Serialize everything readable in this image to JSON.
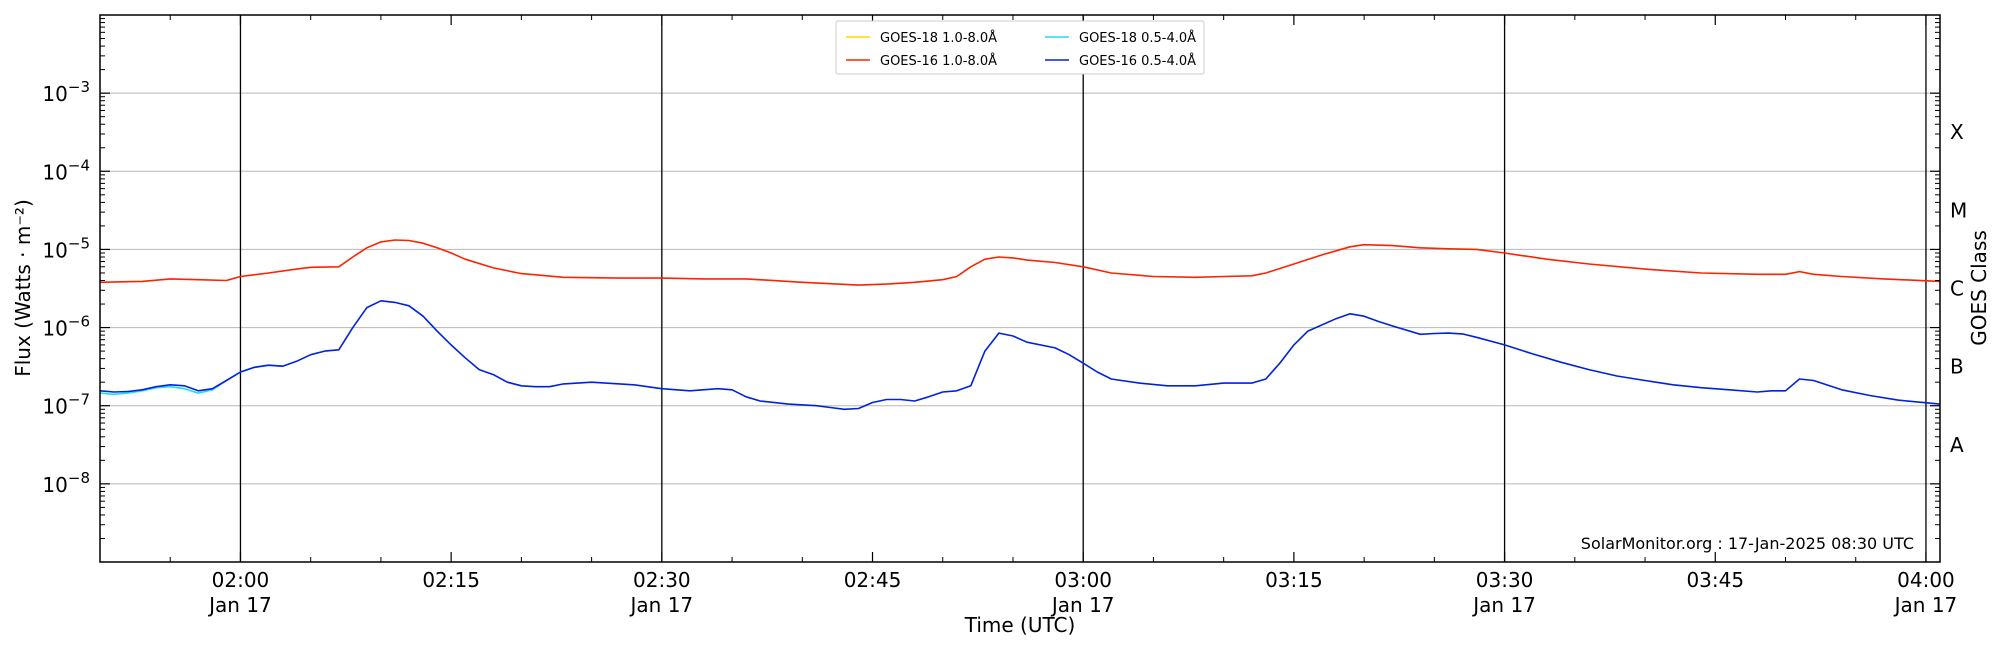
{
  "chart_data": {
    "type": "line",
    "title": "",
    "xlabel": "Time (UTC)",
    "ylabel": "Flux (Watts · m⁻²)",
    "y2label": "GOES Class",
    "yscale": "log",
    "xlim": [
      "01:50",
      "04:01"
    ],
    "ylim": [
      1e-09,
      0.01
    ],
    "x_ticks": [
      {
        "time": "02:00",
        "label": "02:00",
        "sublabel": "Jan 17",
        "major": true
      },
      {
        "time": "02:15",
        "label": "02:15",
        "sublabel": "",
        "major": false
      },
      {
        "time": "02:30",
        "label": "02:30",
        "sublabel": "Jan 17",
        "major": true
      },
      {
        "time": "02:45",
        "label": "02:45",
        "sublabel": "",
        "major": false
      },
      {
        "time": "03:00",
        "label": "03:00",
        "sublabel": "Jan 17",
        "major": true
      },
      {
        "time": "03:15",
        "label": "03:15",
        "sublabel": "",
        "major": false
      },
      {
        "time": "03:30",
        "label": "03:30",
        "sublabel": "Jan 17",
        "major": true
      },
      {
        "time": "03:45",
        "label": "03:45",
        "sublabel": "",
        "major": false
      },
      {
        "time": "04:00",
        "label": "04:00",
        "sublabel": "Jan 17",
        "major": true
      }
    ],
    "y_ticks": [
      {
        "value": 1e-08,
        "exp": "−8"
      },
      {
        "value": 1e-07,
        "exp": "−7"
      },
      {
        "value": 1e-06,
        "exp": "−6"
      },
      {
        "value": 1e-05,
        "exp": "−5"
      },
      {
        "value": 0.0001,
        "exp": "−4"
      },
      {
        "value": 0.001,
        "exp": "−3"
      }
    ],
    "y_tick_base": "10",
    "goes_classes": [
      {
        "label": "A",
        "value": 3.16e-08
      },
      {
        "label": "B",
        "value": 3.16e-07
      },
      {
        "label": "C",
        "value": 3.16e-06
      },
      {
        "label": "M",
        "value": 3.16e-05
      },
      {
        "label": "X",
        "value": 0.000316
      }
    ],
    "grid": true,
    "legend_position": "top-center",
    "credit": "SolarMonitor.org : 17-Jan-2025 08:30 UTC",
    "series": [
      {
        "name": "GOES-18 1.0-8.0Å",
        "color": "#ffd700",
        "visible_line": false,
        "x": [],
        "y": []
      },
      {
        "name": "GOES-16 1.0-8.0Å",
        "color": "#ff2200",
        "x": [
          "01:50",
          "01:53",
          "01:55",
          "01:57",
          "01:59",
          "02:00",
          "02:02",
          "02:04",
          "02:05",
          "02:07",
          "02:08",
          "02:09",
          "02:10",
          "02:11",
          "02:12",
          "02:13",
          "02:14",
          "02:15",
          "02:16",
          "02:18",
          "02:20",
          "02:23",
          "02:27",
          "02:30",
          "02:33",
          "02:36",
          "02:40",
          "02:44",
          "02:46",
          "02:48",
          "02:50",
          "02:51",
          "02:52",
          "02:53",
          "02:54",
          "02:55",
          "02:56",
          "02:58",
          "03:00",
          "03:02",
          "03:05",
          "03:08",
          "03:10",
          "03:12",
          "03:13",
          "03:15",
          "03:17",
          "03:19",
          "03:20",
          "03:22",
          "03:24",
          "03:26",
          "03:28",
          "03:30",
          "03:33",
          "03:36",
          "03:40",
          "03:44",
          "03:48",
          "03:50",
          "03:51",
          "03:52",
          "03:54",
          "03:57",
          "04:01"
        ],
        "y": [
          3.8e-06,
          3.9e-06,
          4.2e-06,
          4.1e-06,
          4e-06,
          4.5e-06,
          5e-06,
          5.6e-06,
          5.9e-06,
          6e-06,
          8e-06,
          1.05e-05,
          1.25e-05,
          1.32e-05,
          1.3e-05,
          1.2e-05,
          1.05e-05,
          9e-06,
          7.5e-06,
          5.8e-06,
          4.9e-06,
          4.4e-06,
          4.3e-06,
          4.3e-06,
          4.2e-06,
          4.2e-06,
          3.8e-06,
          3.5e-06,
          3.6e-06,
          3.8e-06,
          4.1e-06,
          4.5e-06,
          6e-06,
          7.5e-06,
          8e-06,
          7.8e-06,
          7.3e-06,
          6.8e-06,
          6e-06,
          5e-06,
          4.5e-06,
          4.4e-06,
          4.5e-06,
          4.6e-06,
          5e-06,
          6.5e-06,
          8.5e-06,
          1.08e-05,
          1.15e-05,
          1.12e-05,
          1.05e-05,
          1.02e-05,
          1e-05,
          9e-06,
          7.5e-06,
          6.5e-06,
          5.6e-06,
          5e-06,
          4.8e-06,
          4.8e-06,
          5.2e-06,
          4.8e-06,
          4.5e-06,
          4.2e-06,
          3.9e-06
        ]
      },
      {
        "name": "GOES-18 0.5-4.0Å",
        "color": "#22ddee",
        "x": [
          "01:50",
          "01:51",
          "01:52",
          "01:53",
          "01:54",
          "01:55",
          "01:56",
          "01:57",
          "01:58",
          "01:59",
          "02:00",
          "02:01",
          "02:02",
          "02:03"
        ],
        "y": [
          1.45e-07,
          1.4e-07,
          1.45e-07,
          1.55e-07,
          1.7e-07,
          1.75e-07,
          1.65e-07,
          1.45e-07,
          1.6e-07,
          2.1e-07,
          2.7e-07,
          3.1e-07,
          3.3e-07,
          3.2e-07
        ]
      },
      {
        "name": "GOES-16 0.5-4.0Å",
        "color": "#0022dd",
        "x": [
          "01:50",
          "01:51",
          "01:52",
          "01:53",
          "01:54",
          "01:55",
          "01:56",
          "01:57",
          "01:58",
          "01:59",
          "02:00",
          "02:01",
          "02:02",
          "02:03",
          "02:04",
          "02:05",
          "02:06",
          "02:07",
          "02:08",
          "02:09",
          "02:10",
          "02:11",
          "02:12",
          "02:13",
          "02:14",
          "02:15",
          "02:16",
          "02:17",
          "02:18",
          "02:19",
          "02:20",
          "02:21",
          "02:22",
          "02:23",
          "02:25",
          "02:26",
          "02:28",
          "02:30",
          "02:32",
          "02:34",
          "02:35",
          "02:36",
          "02:37",
          "02:39",
          "02:41",
          "02:42",
          "02:43",
          "02:44",
          "02:45",
          "02:46",
          "02:47",
          "02:48",
          "02:49",
          "02:50",
          "02:51",
          "02:52",
          "02:53",
          "02:54",
          "02:55",
          "02:56",
          "02:58",
          "02:59",
          "03:00",
          "03:01",
          "03:02",
          "03:04",
          "03:06",
          "03:08",
          "03:10",
          "03:12",
          "03:13",
          "03:14",
          "03:15",
          "03:16",
          "03:18",
          "03:19",
          "03:20",
          "03:21",
          "03:22",
          "03:24",
          "03:25",
          "03:26",
          "03:27",
          "03:28",
          "03:30",
          "03:32",
          "03:34",
          "03:36",
          "03:38",
          "03:40",
          "03:42",
          "03:44",
          "03:46",
          "03:48",
          "03:49",
          "03:50",
          "03:51",
          "03:52",
          "03:54",
          "03:56",
          "03:58",
          "04:01"
        ],
        "y": [
          1.55e-07,
          1.5e-07,
          1.52e-07,
          1.6e-07,
          1.75e-07,
          1.85e-07,
          1.8e-07,
          1.55e-07,
          1.65e-07,
          2.1e-07,
          2.7e-07,
          3.1e-07,
          3.3e-07,
          3.2e-07,
          3.7e-07,
          4.5e-07,
          5e-07,
          5.2e-07,
          1e-06,
          1.8e-06,
          2.2e-06,
          2.1e-06,
          1.9e-06,
          1.4e-06,
          9e-07,
          6e-07,
          4.1e-07,
          2.9e-07,
          2.5e-07,
          2e-07,
          1.8e-07,
          1.75e-07,
          1.75e-07,
          1.9e-07,
          2e-07,
          1.95e-07,
          1.85e-07,
          1.65e-07,
          1.55e-07,
          1.65e-07,
          1.6e-07,
          1.3e-07,
          1.15e-07,
          1.05e-07,
          1e-07,
          9.5e-08,
          9e-08,
          9.2e-08,
          1.1e-07,
          1.2e-07,
          1.2e-07,
          1.15e-07,
          1.3e-07,
          1.5e-07,
          1.55e-07,
          1.8e-07,
          5e-07,
          8.5e-07,
          7.8e-07,
          6.5e-07,
          5.5e-07,
          4.5e-07,
          3.5e-07,
          2.7e-07,
          2.2e-07,
          1.95e-07,
          1.8e-07,
          1.8e-07,
          1.95e-07,
          1.95e-07,
          2.2e-07,
          3.5e-07,
          6e-07,
          9e-07,
          1.3e-06,
          1.5e-06,
          1.4e-06,
          1.2e-06,
          1.05e-06,
          8.2e-07,
          8.4e-07,
          8.5e-07,
          8.3e-07,
          7.5e-07,
          6e-07,
          4.6e-07,
          3.6e-07,
          2.9e-07,
          2.4e-07,
          2.1e-07,
          1.85e-07,
          1.7e-07,
          1.6e-07,
          1.5e-07,
          1.55e-07,
          1.55e-07,
          2.2e-07,
          2.1e-07,
          1.6e-07,
          1.35e-07,
          1.18e-07,
          1.05e-07
        ]
      }
    ]
  }
}
